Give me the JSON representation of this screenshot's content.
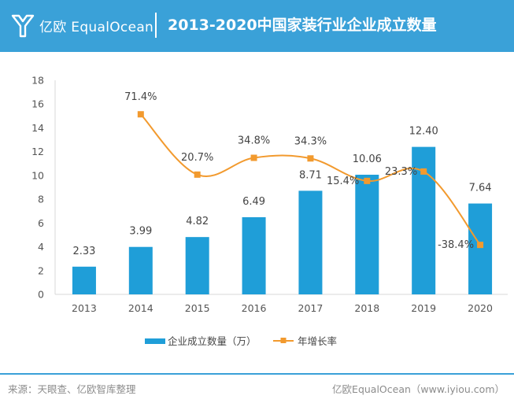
{
  "header": {
    "logo_text": "亿欧 EqualOcean",
    "title": "2013-2020中国家装行业企业成立数量"
  },
  "chart_data": {
    "type": "bar",
    "categories": [
      "2013",
      "2014",
      "2015",
      "2016",
      "2017",
      "2018",
      "2019",
      "2020"
    ],
    "series": [
      {
        "name": "企业成立数量（万）",
        "type": "bar",
        "axis": "left",
        "values": [
          2.33,
          3.99,
          4.82,
          6.49,
          8.71,
          10.06,
          12.4,
          7.64
        ],
        "labels": [
          "2.33",
          "3.99",
          "4.82",
          "6.49",
          "8.71",
          "10.06",
          "12.40",
          "7.64"
        ]
      },
      {
        "name": "年增长率",
        "type": "line",
        "axis": "right",
        "values": [
          null,
          71.4,
          20.7,
          34.8,
          34.3,
          15.4,
          23.3,
          -38.4
        ],
        "labels": [
          "",
          "71.4%",
          "20.7%",
          "34.8%",
          "34.3%",
          "15.4%",
          "23.3%",
          "-38.4%"
        ]
      }
    ],
    "yticks": [
      "0",
      "2",
      "4",
      "6",
      "8",
      "10",
      "12",
      "14",
      "16",
      "18"
    ],
    "ylim": [
      0,
      18
    ],
    "y2lim": [
      -80,
      100
    ],
    "legend_position": "bottom",
    "colors": {
      "bar": "#1f9ed8",
      "line": "#f29a2e"
    }
  },
  "footer": {
    "source": "来源：天眼查、亿欧智库整理",
    "credit": "亿欧EqualOcean（www.iyiou.com）"
  }
}
